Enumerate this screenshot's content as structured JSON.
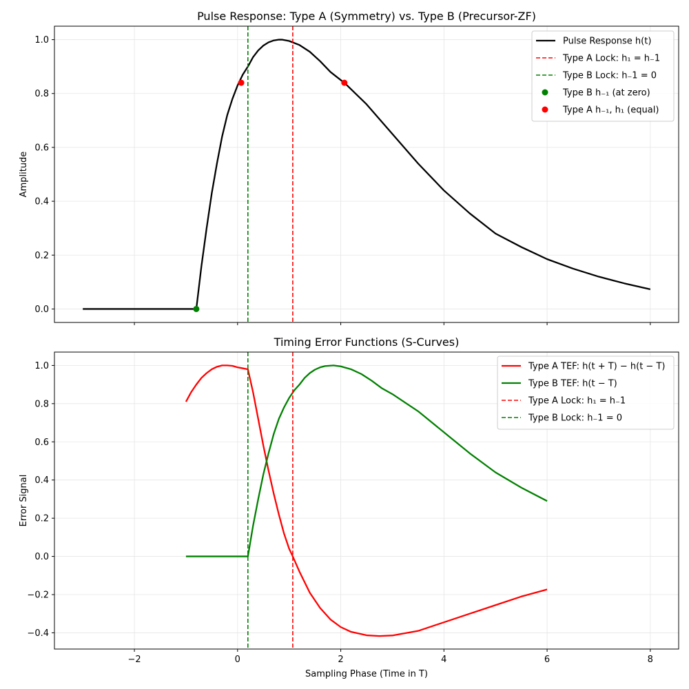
{
  "chart_data": [
    {
      "type": "line",
      "title": "Pulse Response: Type A (Symmetry) vs. Type B (Precursor-ZF)",
      "xlabel": "",
      "ylabel": "Amplitude",
      "xlim": [
        -3.55,
        8.55
      ],
      "ylim": [
        -0.05,
        1.05
      ],
      "grid": true,
      "legend_position": "top-right",
      "x_ticks": [
        {
          "value": -2,
          "label": "−2"
        },
        {
          "value": 0,
          "label": "0"
        },
        {
          "value": 2,
          "label": "2"
        },
        {
          "value": 4,
          "label": "4"
        },
        {
          "value": 6,
          "label": "6"
        },
        {
          "value": 8,
          "label": "8"
        }
      ],
      "y_ticks": [
        {
          "value": 0.0,
          "label": "0.0"
        },
        {
          "value": 0.2,
          "label": "0.2"
        },
        {
          "value": 0.4,
          "label": "0.4"
        },
        {
          "value": 0.6,
          "label": "0.6"
        },
        {
          "value": 0.8,
          "label": "0.8"
        },
        {
          "value": 1.0,
          "label": "1.0"
        }
      ],
      "series": [
        {
          "name": "Pulse Response h(t)",
          "color": "#000000",
          "style": "solid",
          "x": [
            -3.0,
            -0.8,
            -0.7,
            -0.6,
            -0.5,
            -0.4,
            -0.3,
            -0.2,
            -0.1,
            0.0,
            0.1,
            0.2,
            0.3,
            0.4,
            0.5,
            0.6,
            0.7,
            0.8,
            0.86,
            1.0,
            1.2,
            1.4,
            1.6,
            1.8,
            2.0,
            2.07,
            2.5,
            3.0,
            3.5,
            4.0,
            4.5,
            5.0,
            5.5,
            6.0,
            6.5,
            7.0,
            7.5,
            8.0
          ],
          "y": [
            0.0,
            0.0,
            0.16,
            0.3,
            0.43,
            0.54,
            0.64,
            0.72,
            0.78,
            0.83,
            0.87,
            0.9,
            0.935,
            0.96,
            0.978,
            0.99,
            0.997,
            1.0,
            1.0,
            0.995,
            0.98,
            0.955,
            0.92,
            0.88,
            0.85,
            0.84,
            0.76,
            0.65,
            0.54,
            0.44,
            0.355,
            0.28,
            0.23,
            0.185,
            0.15,
            0.12,
            0.095,
            0.073
          ]
        },
        {
          "name": "Type A Lock: h1 = h−1",
          "color": "#ff0000",
          "style": "dashed",
          "vline": 1.07
        },
        {
          "name": "Type B Lock: h−1 = 0",
          "color": "#008000",
          "style": "dashed",
          "vline": 0.2
        },
        {
          "name": "Type B h−1 (at zero)",
          "color": "#008000",
          "style": "marker",
          "x": [
            -0.8
          ],
          "y": [
            0.0
          ]
        },
        {
          "name": "Type A h−1, h1 (equal)",
          "color": "#ff0000",
          "style": "marker",
          "x": [
            0.07,
            2.07
          ],
          "y": [
            0.84,
            0.84
          ]
        }
      ],
      "legend": [
        {
          "label": "Pulse Response h(t)",
          "color": "#000000",
          "kind": "solid"
        },
        {
          "label": "Type A Lock: h₁ = h₋1",
          "color": "#ff0000",
          "kind": "dashed"
        },
        {
          "label": "Type B Lock: h₋1 = 0",
          "color": "#008000",
          "kind": "dashed"
        },
        {
          "label": "Type B h₋₁ (at zero)",
          "color": "#008000",
          "kind": "marker"
        },
        {
          "label": "Type A h₋₁, h₁ (equal)",
          "color": "#ff0000",
          "kind": "marker"
        }
      ]
    },
    {
      "type": "line",
      "title": "Timing Error Functions (S-Curves)",
      "xlabel": "Sampling Phase (Time in T)",
      "ylabel": "Error Signal",
      "xlim": [
        -3.55,
        8.55
      ],
      "ylim": [
        -0.485,
        1.07
      ],
      "grid": true,
      "legend_position": "top-right",
      "x_ticks": [
        {
          "value": -2,
          "label": "−2"
        },
        {
          "value": 0,
          "label": "0"
        },
        {
          "value": 2,
          "label": "2"
        },
        {
          "value": 4,
          "label": "4"
        },
        {
          "value": 6,
          "label": "6"
        },
        {
          "value": 8,
          "label": "8"
        }
      ],
      "y_ticks": [
        {
          "value": -0.4,
          "label": "−0.4"
        },
        {
          "value": -0.2,
          "label": "−0.2"
        },
        {
          "value": 0.0,
          "label": "0.0"
        },
        {
          "value": 0.2,
          "label": "0.2"
        },
        {
          "value": 0.4,
          "label": "0.4"
        },
        {
          "value": 0.6,
          "label": "0.6"
        },
        {
          "value": 0.8,
          "label": "0.8"
        },
        {
          "value": 1.0,
          "label": "1.0"
        }
      ],
      "series": [
        {
          "name": "Type A TEF: h(t+T) − h(t−T)",
          "color": "#ff0000",
          "style": "solid",
          "x": [
            -1.0,
            -0.9,
            -0.8,
            -0.7,
            -0.6,
            -0.5,
            -0.4,
            -0.3,
            -0.2,
            -0.1,
            0.0,
            0.1,
            0.2,
            0.3,
            0.4,
            0.5,
            0.6,
            0.7,
            0.8,
            0.9,
            1.0,
            1.07,
            1.2,
            1.4,
            1.6,
            1.8,
            2.0,
            2.2,
            2.5,
            2.75,
            3.0,
            3.5,
            4.0,
            4.5,
            5.0,
            5.5,
            6.0
          ],
          "y": [
            0.81,
            0.86,
            0.9,
            0.935,
            0.96,
            0.98,
            0.993,
            1.0,
            1.0,
            0.998,
            0.99,
            0.985,
            0.98,
            0.86,
            0.72,
            0.58,
            0.45,
            0.33,
            0.22,
            0.12,
            0.04,
            0.0,
            -0.08,
            -0.19,
            -0.27,
            -0.33,
            -0.37,
            -0.395,
            -0.413,
            -0.417,
            -0.414,
            -0.39,
            -0.345,
            -0.3,
            -0.255,
            -0.21,
            -0.173
          ]
        },
        {
          "name": "Type B TEF: h(t−T)",
          "color": "#008000",
          "style": "solid",
          "x": [
            -1.0,
            0.2,
            0.3,
            0.4,
            0.5,
            0.6,
            0.7,
            0.8,
            0.9,
            1.0,
            1.1,
            1.2,
            1.3,
            1.4,
            1.5,
            1.6,
            1.7,
            1.86,
            2.0,
            2.2,
            2.4,
            2.6,
            2.8,
            3.0,
            3.5,
            4.0,
            4.5,
            5.0,
            5.5,
            6.0
          ],
          "y": [
            0.0,
            0.0,
            0.16,
            0.3,
            0.43,
            0.54,
            0.64,
            0.72,
            0.78,
            0.83,
            0.87,
            0.9,
            0.935,
            0.96,
            0.978,
            0.99,
            0.997,
            1.0,
            0.995,
            0.98,
            0.955,
            0.92,
            0.88,
            0.85,
            0.76,
            0.65,
            0.54,
            0.44,
            0.36,
            0.29
          ]
        },
        {
          "name": "Type A Lock: h1 = h−1",
          "color": "#ff0000",
          "style": "dashed",
          "vline": 1.07
        },
        {
          "name": "Type B Lock: h−1 = 0",
          "color": "#008000",
          "style": "dashed",
          "vline": 0.2
        }
      ],
      "legend": [
        {
          "label": "Type A TEF: h(t + T) − h(t − T)",
          "color": "#ff0000",
          "kind": "solid"
        },
        {
          "label": "Type B TEF: h(t − T)",
          "color": "#008000",
          "kind": "solid"
        },
        {
          "label": "Type A Lock: h₁ = h₋1",
          "color": "#ff0000",
          "kind": "dashed"
        },
        {
          "label": "Type B Lock: h₋1 = 0",
          "color": "#008000",
          "kind": "dashed"
        }
      ]
    }
  ]
}
